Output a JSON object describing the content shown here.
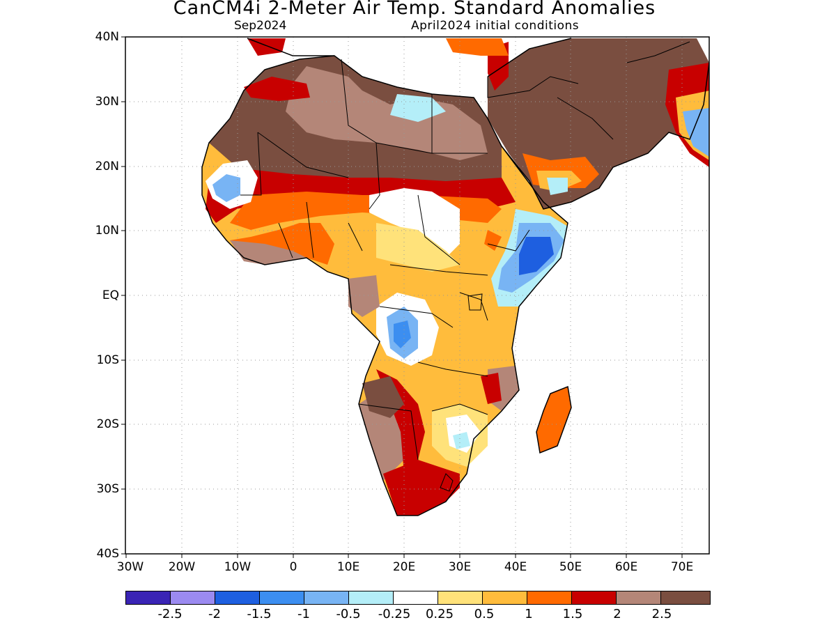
{
  "title": "CanCM4i 2-Meter Air Temp. Standard Anomalies",
  "subtitle_left": "Sep2024",
  "subtitle_right": "April2024 initial conditions",
  "lat_labels": [
    "40N",
    "30N",
    "20N",
    "10N",
    "EQ",
    "10S",
    "20S",
    "30S",
    "40S"
  ],
  "lon_labels": [
    "30W",
    "20W",
    "10W",
    "0",
    "10E",
    "20E",
    "30E",
    "40E",
    "50E",
    "60E",
    "70E"
  ],
  "legend": {
    "colors": [
      "#3a24b5",
      "#9b8af0",
      "#1e5fe0",
      "#3c8ef0",
      "#78b4f4",
      "#b4eef8",
      "#ffffff",
      "#ffe27a",
      "#ffbc3c",
      "#ff6a00",
      "#c80000",
      "#b48678",
      "#7a4e40"
    ],
    "labels": [
      "-2.5",
      "-2",
      "-1.5",
      "-1",
      "-0.5",
      "-0.25",
      "0.25",
      "0.5",
      "1",
      "1.5",
      "2",
      "2.5"
    ]
  },
  "map_data": {
    "type": "filled-contour",
    "variable": "2-Meter Air Temperature standard anomaly",
    "lon_range": [
      -30,
      75
    ],
    "lat_range": [
      -40,
      40
    ],
    "levels": [
      -2.5,
      -2,
      -1.5,
      -1,
      -0.5,
      -0.25,
      0.25,
      0.5,
      1,
      1.5,
      2,
      2.5
    ]
  }
}
